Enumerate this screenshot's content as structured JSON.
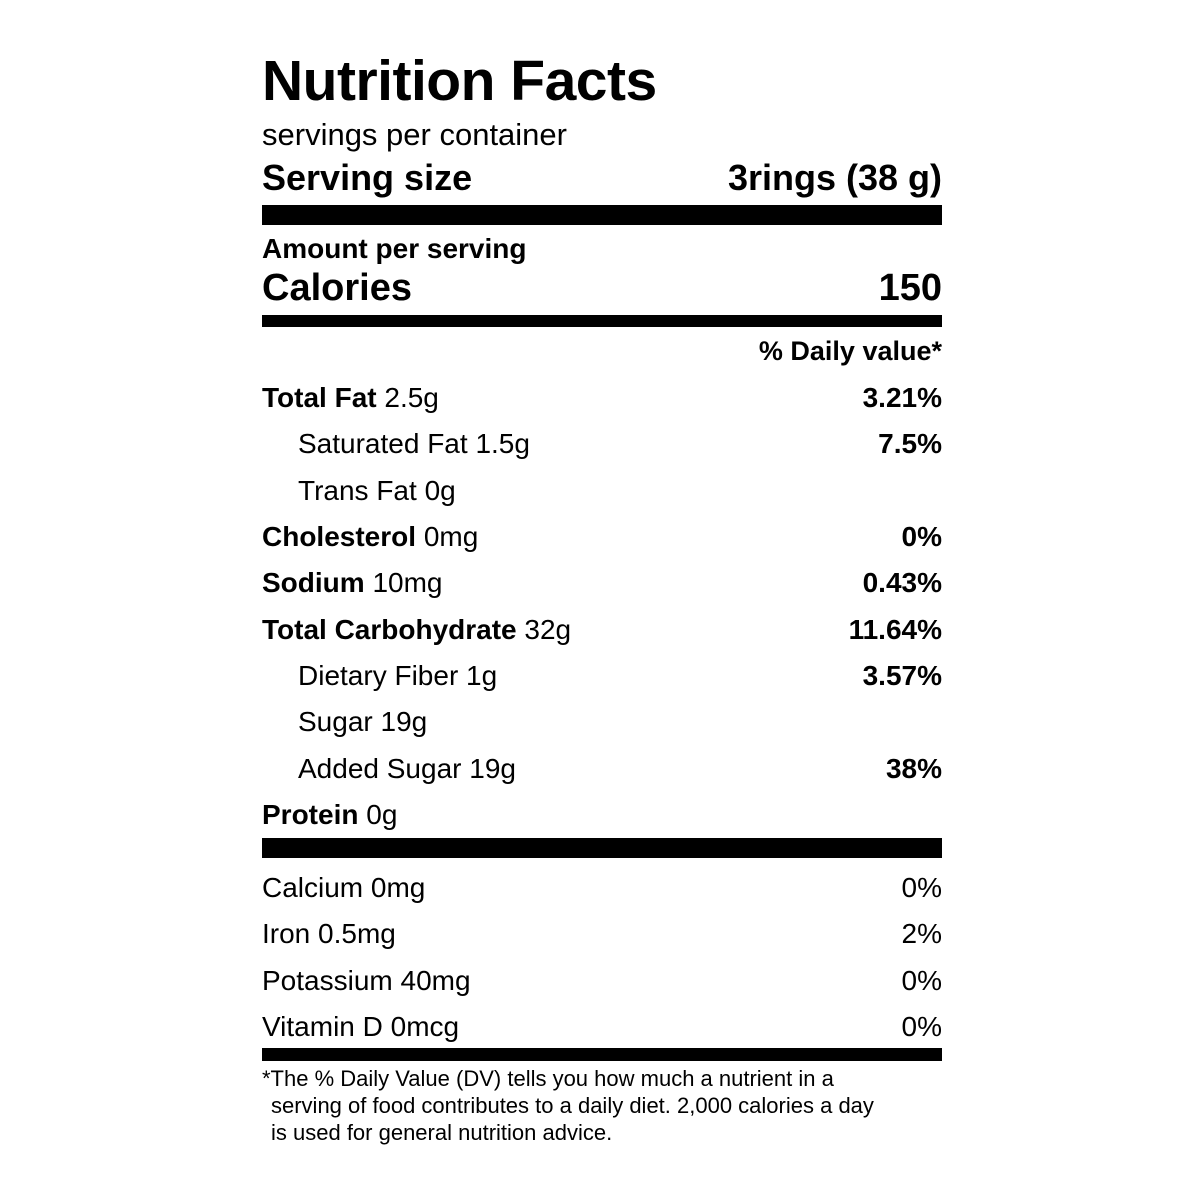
{
  "header": {
    "title": "Nutrition Facts",
    "servings_per_container": "servings per container",
    "serving_size_label": "Serving size",
    "serving_size_value": "3rings (38 g)"
  },
  "calories": {
    "amount_label": "Amount per serving",
    "label": "Calories",
    "value": "150"
  },
  "daily_value_header": "% Daily value*",
  "nutrients": [
    {
      "name": "Total Fat",
      "amount": "2.5g",
      "dv": "3.21%"
    },
    {
      "name": "Saturated Fat",
      "amount": "1.5g",
      "dv": "7.5%"
    },
    {
      "name": "Trans Fat",
      "amount": "0g",
      "dv": ""
    },
    {
      "name": "Cholesterol",
      "amount": "0mg",
      "dv": "0%"
    },
    {
      "name": "Sodium",
      "amount": "10mg",
      "dv": "0.43%"
    },
    {
      "name": "Total Carbohydrate",
      "amount": "32g",
      "dv": "11.64%"
    },
    {
      "name": "Dietary Fiber",
      "amount": "1g",
      "dv": "3.57%"
    },
    {
      "name": "Sugar",
      "amount": "19g",
      "dv": ""
    },
    {
      "name": "Added Sugar",
      "amount": "19g",
      "dv": "38%"
    },
    {
      "name": "Protein",
      "amount": "0g",
      "dv": ""
    }
  ],
  "vitamins": [
    {
      "label": "Calcium 0mg",
      "dv": "0%"
    },
    {
      "label": "Iron 0.5mg",
      "dv": "2%"
    },
    {
      "label": "Potassium 40mg",
      "dv": "0%"
    },
    {
      "label": "Vitamin D 0mcg",
      "dv": "0%"
    }
  ],
  "footnote": [
    "*The % Daily Value (DV) tells you how much a nutrient in a",
    "serving of food contributes to a daily diet. 2,000 calories a day",
    "is used for general nutrition advice."
  ]
}
